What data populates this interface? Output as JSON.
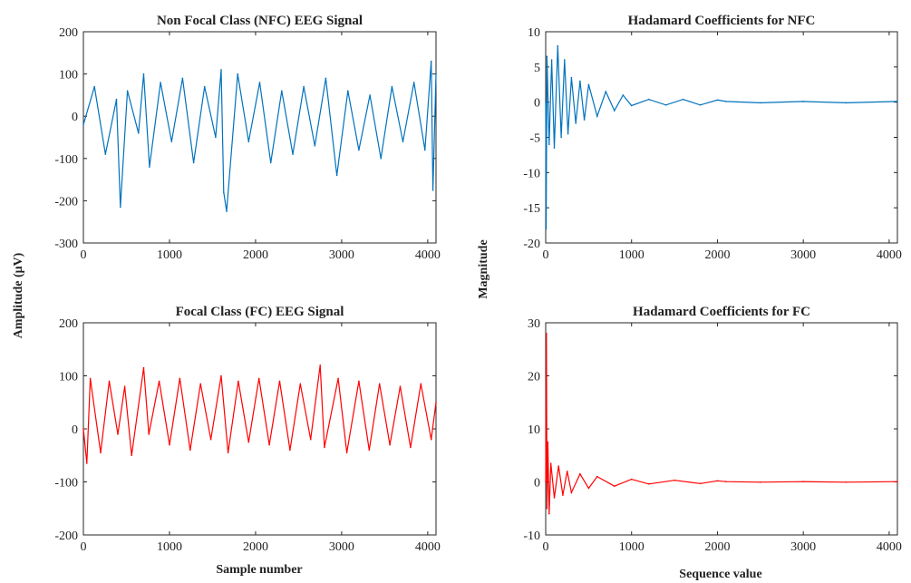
{
  "figure": {
    "left_ylabel": "Amplitude (μV)",
    "right_ylabel": "Magnitude",
    "left_xlabel": "Sample number",
    "right_xlabel": "Sequence value"
  },
  "chart_data": [
    {
      "type": "line",
      "title": "Non Focal Class (NFC) EEG Signal",
      "xlim": [
        0,
        4096
      ],
      "ylim": [
        -300,
        200
      ],
      "xticks": [
        0,
        1000,
        2000,
        3000,
        4000
      ],
      "yticks": [
        -300,
        -200,
        -100,
        0,
        100,
        200
      ],
      "grid": false,
      "color": "#0072BD",
      "series": [
        {
          "x": [
            0,
            128,
            256,
            384,
            430,
            512,
            640,
            700,
            768,
            896,
            1024,
            1152,
            1280,
            1408,
            1536,
            1600,
            1630,
            1664,
            1792,
            1920,
            2048,
            2176,
            2304,
            2432,
            2560,
            2688,
            2816,
            2944,
            3072,
            3200,
            3328,
            3456,
            3584,
            3712,
            3840,
            3968,
            4040,
            4060,
            4096
          ],
          "y": [
            -20,
            70,
            -90,
            40,
            -215,
            60,
            -40,
            100,
            -120,
            80,
            -60,
            90,
            -110,
            70,
            -50,
            110,
            -180,
            -225,
            100,
            -60,
            80,
            -110,
            60,
            -90,
            70,
            -70,
            90,
            -140,
            60,
            -80,
            50,
            -100,
            70,
            -60,
            80,
            -80,
            130,
            -175,
            100
          ]
        }
      ]
    },
    {
      "type": "line",
      "title": "Hadamard Coefficients for NFC",
      "xlim": [
        0,
        4096
      ],
      "ylim": [
        -20,
        10
      ],
      "xticks": [
        0,
        1000,
        2000,
        3000,
        4000
      ],
      "yticks": [
        -20,
        -15,
        -10,
        -5,
        0,
        5,
        10
      ],
      "grid": false,
      "color": "#0072BD",
      "series": [
        {
          "x": [
            0,
            5,
            15,
            40,
            70,
            100,
            140,
            180,
            220,
            260,
            300,
            350,
            400,
            450,
            500,
            600,
            700,
            800,
            900,
            1000,
            1200,
            1400,
            1600,
            1800,
            2000,
            2100,
            2500,
            3000,
            3500,
            4096
          ],
          "y": [
            0,
            -18,
            6.5,
            -6,
            6,
            -6.5,
            8,
            -5,
            6,
            -4.5,
            3.5,
            -3,
            3,
            -2.5,
            2.5,
            -2,
            1.5,
            -1.2,
            1,
            -0.5,
            0.4,
            -0.4,
            0.4,
            -0.4,
            0.3,
            0.1,
            -0.1,
            0.1,
            -0.1,
            0.1
          ]
        }
      ]
    },
    {
      "type": "line",
      "title": "Focal Class (FC) EEG Signal",
      "xlim": [
        0,
        4096
      ],
      "ylim": [
        -200,
        200
      ],
      "xticks": [
        0,
        1000,
        2000,
        3000,
        4000
      ],
      "yticks": [
        -200,
        -100,
        0,
        100,
        200
      ],
      "grid": false,
      "color": "#FF0000",
      "series": [
        {
          "x": [
            0,
            40,
            80,
            200,
            300,
            400,
            480,
            560,
            700,
            760,
            880,
            1000,
            1120,
            1240,
            1360,
            1480,
            1600,
            1680,
            1800,
            1920,
            2040,
            2160,
            2280,
            2400,
            2520,
            2640,
            2750,
            2800,
            2960,
            3060,
            3200,
            3320,
            3440,
            3560,
            3680,
            3800,
            3920,
            4040,
            4096
          ],
          "y": [
            0,
            -65,
            95,
            -45,
            90,
            -10,
            80,
            -50,
            115,
            -10,
            90,
            -30,
            95,
            -40,
            85,
            -20,
            100,
            -45,
            90,
            -25,
            95,
            -30,
            90,
            -40,
            85,
            -20,
            120,
            -35,
            95,
            -45,
            90,
            -40,
            85,
            -30,
            80,
            -35,
            85,
            -20,
            50
          ]
        }
      ]
    },
    {
      "type": "line",
      "title": "Hadamard Coefficients for FC",
      "xlim": [
        0,
        4096
      ],
      "ylim": [
        -10,
        30
      ],
      "xticks": [
        0,
        1000,
        2000,
        3000,
        4000
      ],
      "yticks": [
        -10,
        0,
        10,
        20,
        30
      ],
      "grid": false,
      "color": "#FF0000",
      "series": [
        {
          "x": [
            0,
            8,
            15,
            25,
            40,
            60,
            100,
            150,
            200,
            250,
            300,
            400,
            500,
            600,
            800,
            1000,
            1200,
            1500,
            1800,
            2000,
            2100,
            2500,
            3000,
            3500,
            4096
          ],
          "y": [
            0,
            28,
            -5,
            7.5,
            -6,
            3.5,
            -3,
            3,
            -2.5,
            2,
            -2,
            1.5,
            -1.2,
            1,
            -0.8,
            0.5,
            -0.4,
            0.3,
            -0.3,
            0.2,
            0.05,
            -0.05,
            0.05,
            -0.05,
            0.05
          ]
        }
      ]
    }
  ]
}
